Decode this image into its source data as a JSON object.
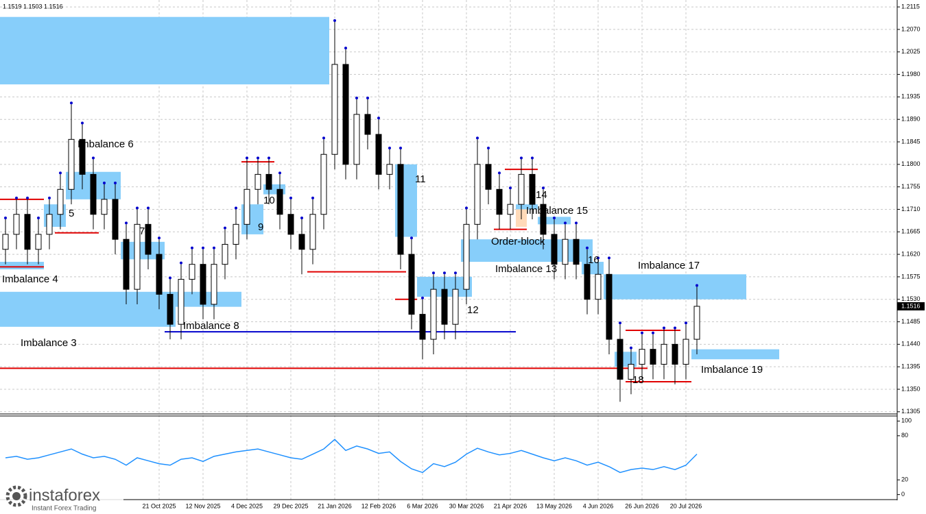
{
  "chart_data": {
    "type": "candlestick",
    "header": "1.1519 1.1503 1.1516",
    "last_price": 1.1516,
    "categories": [
      null,
      null,
      null,
      null,
      null,
      null,
      null,
      null,
      null,
      null,
      null,
      null,
      null,
      null,
      "21 Oct 2025",
      null,
      null,
      null,
      "12 Nov 2025",
      null,
      null,
      null,
      "4 Dec 2025",
      null,
      null,
      null,
      "29 Dec 2025",
      null,
      null,
      null,
      "21 Jan 2026",
      null,
      null,
      null,
      "12 Feb 2026",
      null,
      null,
      null,
      "6 Mar 2026",
      null,
      null,
      null,
      "30 Mar 2026",
      null,
      null,
      null,
      "21 Apr 2026",
      null,
      null,
      null,
      "13 May 2026",
      null,
      null,
      null,
      "4 Jun 2026",
      null,
      null,
      null,
      "26 Jun 2026",
      null,
      null,
      null,
      "20 Jul 2026",
      null
    ],
    "open": [
      1.163,
      1.166,
      1.17,
      1.163,
      1.166,
      1.17,
      1.175,
      1.185,
      1.178,
      1.17,
      1.173,
      1.165,
      1.155,
      1.168,
      1.162,
      1.154,
      1.148,
      1.157,
      1.16,
      1.152,
      1.16,
      1.164,
      1.168,
      1.175,
      1.178,
      1.175,
      1.17,
      1.166,
      1.163,
      1.17,
      1.182,
      1.2,
      1.18,
      1.19,
      1.186,
      1.178,
      1.18,
      1.162,
      1.15,
      1.145,
      1.155,
      1.148,
      1.155,
      1.168,
      1.18,
      1.175,
      1.17,
      1.172,
      1.178,
      1.172,
      1.166,
      1.16,
      1.165,
      1.16,
      1.153,
      1.158,
      1.145,
      1.137,
      1.14,
      1.143,
      1.14,
      1.144,
      1.14,
      1.145
    ],
    "high": [
      1.169,
      1.173,
      1.173,
      1.169,
      1.173,
      1.178,
      1.192,
      1.188,
      1.181,
      1.176,
      1.176,
      1.168,
      1.171,
      1.171,
      1.165,
      1.157,
      1.16,
      1.163,
      1.163,
      1.163,
      1.167,
      1.171,
      1.181,
      1.181,
      1.181,
      1.178,
      1.173,
      1.169,
      1.173,
      1.185,
      1.2085,
      1.203,
      1.193,
      1.193,
      1.189,
      1.183,
      1.183,
      1.165,
      1.153,
      1.158,
      1.158,
      1.158,
      1.171,
      1.185,
      1.183,
      1.178,
      1.175,
      1.181,
      1.181,
      1.175,
      1.169,
      1.168,
      1.168,
      1.163,
      1.161,
      1.161,
      1.148,
      1.143,
      1.146,
      1.146,
      1.147,
      1.147,
      1.148,
      1.1555
    ],
    "low": [
      1.16,
      1.163,
      1.16,
      1.16,
      1.163,
      1.167,
      1.172,
      1.175,
      1.167,
      1.167,
      1.162,
      1.152,
      1.152,
      1.159,
      1.151,
      1.145,
      1.145,
      1.154,
      1.149,
      1.149,
      1.157,
      1.161,
      1.165,
      1.172,
      1.172,
      1.167,
      1.163,
      1.158,
      1.16,
      1.167,
      1.179,
      1.177,
      1.177,
      1.183,
      1.175,
      1.175,
      1.159,
      1.147,
      1.141,
      1.142,
      1.145,
      1.145,
      1.152,
      1.165,
      1.172,
      1.167,
      1.167,
      1.169,
      1.169,
      1.163,
      1.157,
      1.157,
      1.157,
      1.15,
      1.15,
      1.142,
      1.1325,
      1.134,
      1.137,
      1.137,
      1.137,
      1.136,
      1.137,
      1.142
    ],
    "close": [
      1.166,
      1.17,
      1.163,
      1.166,
      1.17,
      1.175,
      1.185,
      1.178,
      1.17,
      1.173,
      1.165,
      1.155,
      1.168,
      1.162,
      1.154,
      1.148,
      1.157,
      1.16,
      1.152,
      1.16,
      1.164,
      1.168,
      1.175,
      1.178,
      1.175,
      1.17,
      1.166,
      1.163,
      1.17,
      1.182,
      1.2,
      1.18,
      1.19,
      1.186,
      1.178,
      1.18,
      1.162,
      1.15,
      1.145,
      1.155,
      1.148,
      1.155,
      1.168,
      1.18,
      1.175,
      1.17,
      1.172,
      1.178,
      1.172,
      1.166,
      1.16,
      1.165,
      1.16,
      1.153,
      1.158,
      1.145,
      1.137,
      1.14,
      1.143,
      1.14,
      1.144,
      1.14,
      1.145,
      1.1516
    ],
    "up_color": "#ffffff",
    "down_color": "#000000",
    "ylim": [
      1.1302,
      1.2122
    ],
    "yticks": [
      1.1305,
      {
        "value": 1.135,
        "label": "1.1350"
      },
      1.1395,
      {
        "value": 1.144,
        "label": "1.1440"
      },
      1.1485,
      {
        "value": 1.153,
        "label": "1.1530"
      },
      1.1575,
      {
        "value": 1.162,
        "label": "1.1620"
      },
      1.1665,
      {
        "value": 1.171,
        "label": "1.1710"
      },
      1.1755,
      {
        "value": 1.18,
        "label": "1.1800"
      },
      1.1845,
      {
        "value": 1.189,
        "label": "1.1890"
      },
      1.1935,
      {
        "value": 1.198,
        "label": "1.1980"
      },
      1.2025,
      {
        "value": 1.207,
        "label": "1.2070"
      },
      1.2115
    ],
    "grid": true,
    "zone_color": "#87cefa",
    "zones": [
      {
        "top": 1.2095,
        "bottom": 1.196,
        "start": 0,
        "end": 29
      },
      {
        "label": "Imbalance 3",
        "top": 1.1545,
        "bottom": 1.1475,
        "start": 0,
        "end": 15
      },
      {
        "label": "Imbalance 4",
        "top": 1.1605,
        "bottom": 1.159,
        "start": 0,
        "end": 3
      },
      {
        "label": "5",
        "top": 1.172,
        "bottom": 1.1675,
        "start": 4,
        "end": 5
      },
      {
        "label": "Imbalance 6",
        "top": 1.1785,
        "bottom": 1.173,
        "start": 6,
        "end": 10
      },
      {
        "label": "7",
        "top": 1.1645,
        "bottom": 1.161,
        "start": 11,
        "end": 14
      },
      {
        "label": "Imbalance 8",
        "top": 1.1545,
        "bottom": 1.1515,
        "start": 16,
        "end": 21
      },
      {
        "label": "9",
        "top": 1.172,
        "bottom": 1.166,
        "start": 22,
        "end": 23
      },
      {
        "label": "10",
        "top": 1.176,
        "bottom": 1.174,
        "start": 24,
        "end": 25
      },
      {
        "label": "11",
        "top": 1.18,
        "bottom": 1.1655,
        "start": 36,
        "end": 37
      },
      {
        "label": "12",
        "top": 1.1575,
        "bottom": 1.1535,
        "start": 38,
        "end": 42
      },
      {
        "label": "Imbalance 13",
        "top": 1.165,
        "bottom": 1.1605,
        "start": 42,
        "end": 53
      },
      {
        "label": "14",
        "top": 1.172,
        "bottom": 1.171,
        "start": 47,
        "end": 48
      },
      {
        "label": "Imbalance 15",
        "top": 1.1695,
        "bottom": 1.168,
        "start": 49,
        "end": 51
      },
      {
        "label": "16",
        "top": 1.1605,
        "bottom": 1.158,
        "start": 53,
        "end": 54
      },
      {
        "label": "Imbalance 17",
        "top": 1.158,
        "bottom": 1.153,
        "start": 55,
        "end": 67
      },
      {
        "label": "18",
        "top": 1.1425,
        "bottom": 1.1395,
        "start": 56,
        "end": 57
      },
      {
        "label": "Imbalance 19",
        "top": 1.143,
        "bottom": 1.141,
        "start": 63,
        "end": 70
      },
      {
        "label": "Order-block",
        "top": 1.171,
        "bottom": 1.1675,
        "start": 47,
        "end": 47,
        "color": "#ffdab9"
      }
    ],
    "level_color": "#e00000",
    "levels": [
      {
        "value": 1.173,
        "start": 0,
        "end": 3
      },
      {
        "value": 1.1595,
        "start": 0,
        "end": 3
      },
      {
        "value": 1.1663,
        "start": 5,
        "end": 8
      },
      {
        "value": 1.1805,
        "start": 22,
        "end": 24
      },
      {
        "value": 1.1585,
        "start": 28,
        "end": 36
      },
      {
        "value": 1.153,
        "start": 36,
        "end": 37
      },
      {
        "value": 1.1465,
        "start": 15,
        "end": 46,
        "color": "#0000cd"
      },
      {
        "value": 1.1392,
        "start": 0,
        "end": 58
      },
      {
        "value": 1.179,
        "start": 46,
        "end": 48
      },
      {
        "value": 1.167,
        "start": 45,
        "end": 47
      },
      {
        "value": 1.1468,
        "start": 57,
        "end": 61
      },
      {
        "value": 1.1365,
        "start": 57,
        "end": 62
      }
    ],
    "oscillator": {
      "color": "#1e90ff",
      "ylim": [
        -5,
        105
      ],
      "yticks": [
        100,
        80,
        20,
        0
      ],
      "values": [
        50,
        52,
        48,
        50,
        54,
        58,
        62,
        55,
        50,
        52,
        48,
        40,
        50,
        46,
        42,
        40,
        48,
        50,
        45,
        52,
        55,
        58,
        60,
        62,
        58,
        54,
        50,
        48,
        55,
        62,
        75,
        60,
        66,
        62,
        56,
        58,
        45,
        35,
        30,
        42,
        38,
        44,
        55,
        63,
        58,
        54,
        56,
        60,
        55,
        50,
        46,
        50,
        46,
        40,
        44,
        38,
        30,
        34,
        36,
        34,
        38,
        34,
        40,
        55
      ]
    }
  },
  "branding": {
    "name": "instaforex",
    "tagline": "Instant Forex Trading"
  }
}
